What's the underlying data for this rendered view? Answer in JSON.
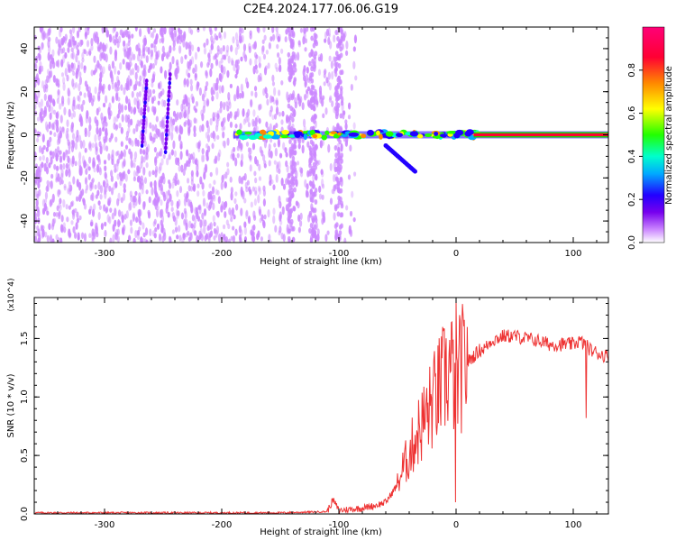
{
  "figure_title": "C2E4.2024.177.06.06.G19",
  "chart_data": [
    {
      "type": "heatmap",
      "xlabel": "Height of straight line (km)",
      "ylabel": "Frequency (Hz)",
      "xlim": [
        -360,
        130
      ],
      "ylim": [
        -50,
        50
      ],
      "x_ticks": [
        -300,
        -200,
        -100,
        0,
        100
      ],
      "y_ticks": [
        -40,
        -20,
        0,
        20,
        40
      ],
      "colorbar": {
        "label": "Normalized spectral amplitude",
        "range": [
          0,
          1
        ],
        "ticks": [
          "0.0",
          "0.2",
          "0.4",
          "0.6",
          "0.8"
        ],
        "colors": [
          "#ffffff",
          "#cc88ff",
          "#7700ee",
          "#2200ff",
          "#00aaff",
          "#00ffcc",
          "#22ff00",
          "#ffff00",
          "#ff8800",
          "#ff0033",
          "#ff0077"
        ]
      },
      "features": [
        {
          "name": "carrier line",
          "x_range": [
            -190,
            130
          ],
          "freq_hz": 0,
          "amplitude": 0.9
        },
        {
          "name": "lower branch",
          "x_range": [
            -60,
            -35
          ],
          "freq_range_hz": [
            -5,
            -17
          ],
          "amplitude": 0.3
        },
        {
          "name": "upper streak",
          "x_range": [
            -270,
            -240
          ],
          "freq_range_hz": [
            -5,
            25
          ],
          "amplitude": 0.2
        }
      ]
    },
    {
      "type": "line",
      "xlabel": "Height of straight line (km)",
      "ylabel": "SNR (10 * v/v)",
      "y_multiplier": "(x10^4)",
      "xlim": [
        -360,
        130
      ],
      "ylim": [
        0,
        1.85
      ],
      "x_ticks": [
        -300,
        -200,
        -100,
        0,
        100
      ],
      "y_ticks": [
        "0.0",
        "0.5",
        "1.0",
        "1.5"
      ],
      "series": [
        {
          "color": "#ee3333",
          "x": [
            -360,
            -300,
            -250,
            -200,
            -150,
            -110,
            -105,
            -100,
            -90,
            -80,
            -70,
            -60,
            -50,
            -45,
            -40,
            -35,
            -30,
            -25,
            -20,
            -15,
            -10,
            -5,
            0,
            5,
            10,
            15,
            20,
            25,
            30,
            40,
            50,
            60,
            70,
            80,
            90,
            100,
            105,
            110,
            115,
            120,
            125,
            130
          ],
          "y": [
            0.01,
            0.01,
            0.01,
            0.01,
            0.01,
            0.02,
            0.12,
            0.03,
            0.04,
            0.05,
            0.07,
            0.1,
            0.25,
            0.4,
            0.5,
            0.65,
            0.75,
            0.85,
            0.95,
            1.05,
            1.15,
            1.25,
            1.1,
            1.25,
            1.3,
            1.35,
            1.4,
            1.42,
            1.48,
            1.52,
            1.52,
            1.5,
            1.48,
            1.45,
            1.45,
            1.45,
            1.48,
            1.45,
            1.4,
            1.38,
            1.36,
            1.35
          ]
        }
      ]
    }
  ]
}
